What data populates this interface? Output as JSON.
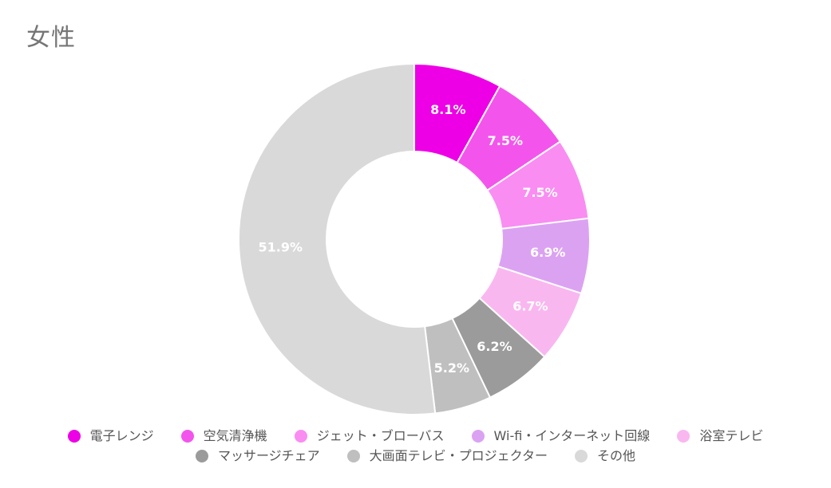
{
  "title": "女性",
  "chart_data": {
    "type": "pie",
    "subtype": "donut",
    "title": "女性",
    "labels": [
      "電子レンジ",
      "空気清浄機",
      "ジェット・ブローバス",
      "Wi-fi・インターネット回線",
      "浴室テレビ",
      "マッサージチェア",
      "大画面テレビ・プロジェクター",
      "その他"
    ],
    "values": [
      8.1,
      7.5,
      7.5,
      6.9,
      6.7,
      6.2,
      5.2,
      51.9
    ],
    "slice_labels": [
      "8.1%",
      "7.5%",
      "7.5%",
      "6.9%",
      "6.7%",
      "6.2%",
      "5.2%",
      "51.9%"
    ],
    "colors": [
      "#EE00E6",
      "#F355EC",
      "#F98DF2",
      "#DCA2F2",
      "#F9B7F0",
      "#9B9B9B",
      "#BFBFBF",
      "#D9D9D9"
    ],
    "start_angle_deg": 0,
    "direction": "clockwise",
    "inner_radius_ratio": 0.5,
    "slice_border_color": "#FFFFFF",
    "label_color": "#FFFFFF",
    "legend_position": "bottom",
    "legend_row_split": 5
  },
  "styles": {
    "background": "#FFFFFF",
    "title_color": "#767676",
    "legend_text_color": "#565656"
  }
}
